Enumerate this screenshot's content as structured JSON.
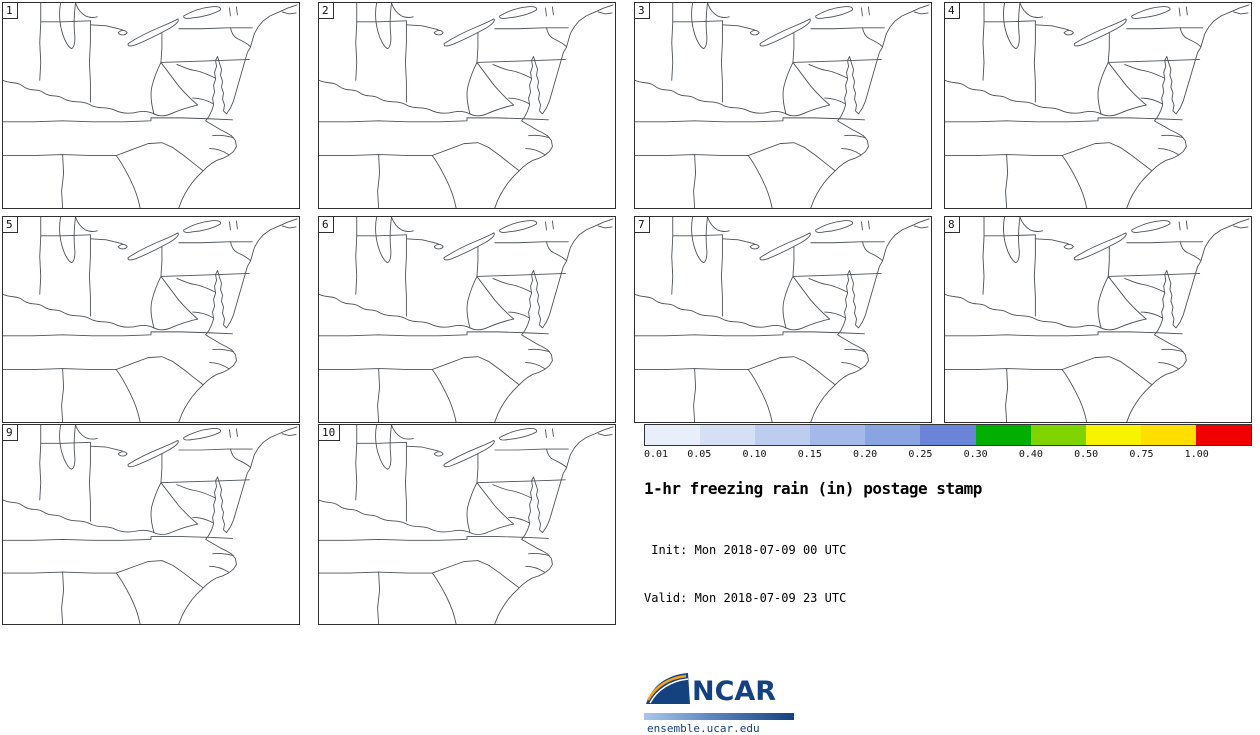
{
  "panels": [
    {
      "label": "1"
    },
    {
      "label": "2"
    },
    {
      "label": "3"
    },
    {
      "label": "4"
    },
    {
      "label": "5"
    },
    {
      "label": "6"
    },
    {
      "label": "7"
    },
    {
      "label": "8"
    },
    {
      "label": "9"
    },
    {
      "label": "10"
    }
  ],
  "legend": {
    "ticks": [
      "0.01",
      "0.05",
      "0.10",
      "0.15",
      "0.20",
      "0.25",
      "0.30",
      "0.40",
      "0.50",
      "0.75",
      "1.00"
    ],
    "segment_colors": [
      "#e9effa",
      "#d5e0f5",
      "#bdcdef",
      "#a4b9e9",
      "#8aa4e1",
      "#6b84d7",
      "#00af00",
      "#7fd400",
      "#f8f400",
      "#ffde00",
      "#f10000"
    ]
  },
  "product": {
    "title": "1-hr freezing rain (in) postage stamp",
    "init_line": " Init: Mon 2018-07-09 00 UTC",
    "valid_line": "Valid: Mon 2018-07-09 23 UTC"
  },
  "logo": {
    "acronym": "NCAR",
    "site": "ensemble.ucar.edu",
    "brand_color": "#14427e",
    "swoosh_color": "#f6a21d"
  }
}
